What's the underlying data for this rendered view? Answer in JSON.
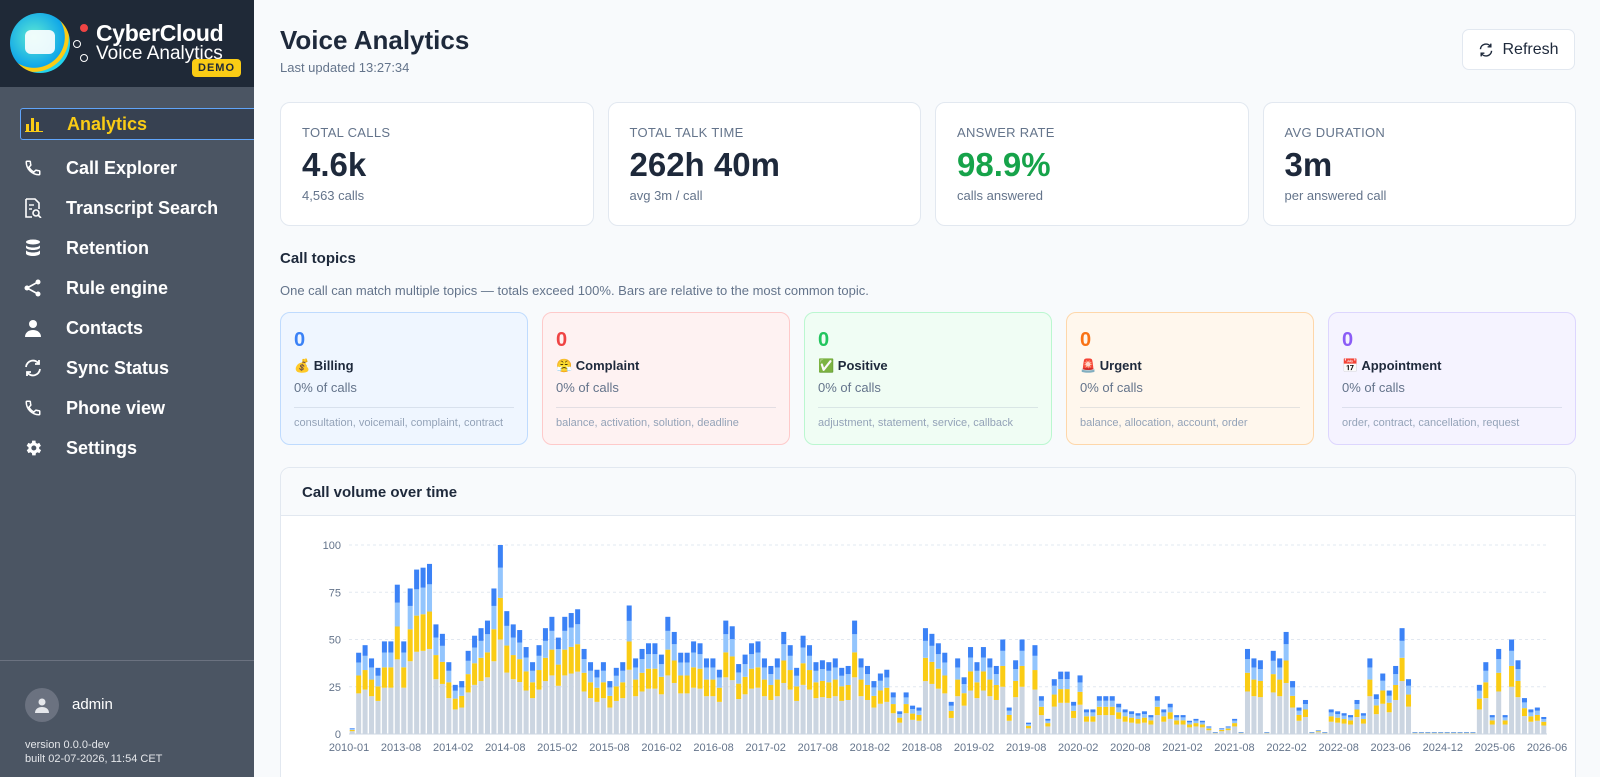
{
  "brand": {
    "title": "CyberCloud",
    "subtitle": "Voice Analytics",
    "badge": "DEMO"
  },
  "nav": {
    "items": [
      {
        "label": "Analytics",
        "icon": "bar-chart-icon",
        "active": true
      },
      {
        "label": "Call Explorer",
        "icon": "phone-icon"
      },
      {
        "label": "Transcript Search",
        "icon": "file-search-icon"
      },
      {
        "label": "Retention",
        "icon": "database-icon"
      },
      {
        "label": "Rule engine",
        "icon": "share-icon"
      },
      {
        "label": "Contacts",
        "icon": "user-icon"
      },
      {
        "label": "Sync Status",
        "icon": "sync-icon"
      },
      {
        "label": "Phone view",
        "icon": "phone-icon"
      },
      {
        "label": "Settings",
        "icon": "gear-icon"
      }
    ]
  },
  "footer": {
    "username": "admin",
    "version": "version 0.0.0-dev",
    "built": "built 02-07-2026, 11:54 CET"
  },
  "header": {
    "title": "Voice Analytics",
    "updated": "Last updated 13:27:34",
    "refresh_label": "Refresh"
  },
  "stats": [
    {
      "label": "TOTAL CALLS",
      "value": "4.6k",
      "sub": "4,563 calls"
    },
    {
      "label": "TOTAL TALK TIME",
      "value": "262h 40m",
      "sub": "avg 3m / call"
    },
    {
      "label": "ANSWER RATE",
      "value": "98.9%",
      "sub": "calls answered",
      "accent": "#16a34a"
    },
    {
      "label": "AVG DURATION",
      "value": "3m",
      "sub": "per answered call"
    }
  ],
  "topics_section": {
    "title": "Call topics",
    "description": "One call can match multiple topics — totals exceed 100%. Bars are relative to the most common topic."
  },
  "topics": [
    {
      "count": "0",
      "name": "💰 Billing",
      "pct": "0% of calls",
      "keywords": "consultation, voicemail, complaint, contract",
      "color": "#3b82f6",
      "bg": "#eff6ff",
      "border": "#bfdbfe"
    },
    {
      "count": "0",
      "name": "😤 Complaint",
      "pct": "0% of calls",
      "keywords": "balance, activation, solution, deadline",
      "color": "#ef4444",
      "bg": "#fef2f2",
      "border": "#fecaca"
    },
    {
      "count": "0",
      "name": "✅ Positive",
      "pct": "0% of calls",
      "keywords": "adjustment, statement, service, callback",
      "color": "#22c55e",
      "bg": "#f0fdf4",
      "border": "#bbf7d0"
    },
    {
      "count": "0",
      "name": "🚨 Urgent",
      "pct": "0% of calls",
      "keywords": "balance, allocation, account, order",
      "color": "#f97316",
      "bg": "#fff7ed",
      "border": "#fed7aa"
    },
    {
      "count": "0",
      "name": "📅 Appointment",
      "pct": "0% of calls",
      "keywords": "order, contract, cancellation, request",
      "color": "#8b5cf6",
      "bg": "#f5f3ff",
      "border": "#ddd6fe"
    }
  ],
  "chart_title": "Call volume over time",
  "chart_data": {
    "type": "bar",
    "stacked": true,
    "ylim": [
      0,
      100
    ],
    "yticks": [
      0,
      25,
      50,
      75,
      100
    ],
    "xtick_labels": [
      "2010-01",
      "2013-08",
      "2014-02",
      "2014-08",
      "2015-02",
      "2015-08",
      "2016-02",
      "2016-08",
      "2017-02",
      "2017-08",
      "2018-02",
      "2018-08",
      "2019-02",
      "2019-08",
      "2020-02",
      "2020-08",
      "2021-02",
      "2021-08",
      "2022-02",
      "2022-08",
      "2023-06",
      "2024-12",
      "2025-06",
      "2026-06"
    ],
    "series_colors": [
      "#cbd5e1",
      "#facc15",
      "#93c5fd",
      "#3b82f6"
    ],
    "totals": [
      3,
      43,
      47,
      40,
      35,
      49,
      49,
      79,
      49,
      77,
      87,
      88,
      90,
      58,
      53,
      38,
      26,
      28,
      44,
      52,
      56,
      60,
      77,
      100,
      65,
      58,
      55,
      46,
      38,
      47,
      56,
      62,
      51,
      62,
      64,
      66,
      45,
      38,
      34,
      38,
      28,
      35,
      38,
      68,
      40,
      45,
      48,
      48,
      42,
      62,
      54,
      43,
      43,
      49,
      48,
      40,
      40,
      34,
      60,
      57,
      37,
      42,
      48,
      49,
      40,
      36,
      40,
      54,
      47,
      35,
      52,
      47,
      38,
      39,
      38,
      40,
      35,
      36,
      60,
      40,
      36,
      28,
      32,
      34,
      22,
      12,
      22,
      15,
      14,
      56,
      53,
      48,
      43,
      17,
      40,
      30,
      46,
      38,
      46,
      40,
      36,
      50,
      14,
      39,
      50,
      6,
      47,
      20,
      8,
      29,
      33,
      33,
      17,
      31,
      13,
      13,
      20,
      20,
      20,
      16,
      13,
      12,
      11,
      12,
      10,
      20,
      13,
      16,
      10,
      10,
      7,
      8,
      7,
      4,
      1,
      3,
      4,
      8,
      1,
      45,
      40,
      39,
      1,
      44,
      40,
      54,
      28,
      14,
      18,
      1,
      2,
      1,
      13,
      12,
      11,
      10,
      18,
      11,
      40,
      21,
      32,
      23,
      36,
      56,
      29,
      1,
      1,
      1,
      1,
      1,
      1,
      1,
      1,
      1,
      1,
      26,
      38,
      10,
      45,
      10,
      50,
      39,
      19,
      13,
      14,
      9
    ]
  }
}
